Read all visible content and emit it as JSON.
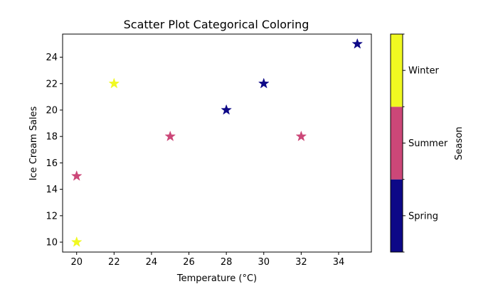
{
  "chart_data": {
    "type": "scatter",
    "title": "Scatter Plot Categorical Coloring",
    "xlabel": "Temperature (°C)",
    "ylabel": "Ice Cream Sales",
    "xlim": [
      19.25,
      35.75
    ],
    "ylim": [
      9.25,
      25.75
    ],
    "xticks": [
      20,
      22,
      24,
      26,
      28,
      30,
      32,
      34
    ],
    "yticks": [
      10,
      12,
      14,
      16,
      18,
      20,
      22,
      24
    ],
    "marker": "star",
    "grid": false,
    "points": [
      {
        "x": 20,
        "y": 15,
        "category": "Summer"
      },
      {
        "x": 20,
        "y": 10,
        "category": "Winter"
      },
      {
        "x": 22,
        "y": 22,
        "category": "Winter"
      },
      {
        "x": 25,
        "y": 18,
        "category": "Summer"
      },
      {
        "x": 28,
        "y": 20,
        "category": "Spring"
      },
      {
        "x": 30,
        "y": 22,
        "category": "Spring"
      },
      {
        "x": 32,
        "y": 18,
        "category": "Summer"
      },
      {
        "x": 35,
        "y": 25,
        "category": "Spring"
      }
    ],
    "colorbar": {
      "label": "Season",
      "categories": [
        {
          "name": "Spring",
          "color": "#0d0887"
        },
        {
          "name": "Summer",
          "color": "#cc4778"
        },
        {
          "name": "Winter",
          "color": "#f0f921"
        }
      ]
    }
  }
}
